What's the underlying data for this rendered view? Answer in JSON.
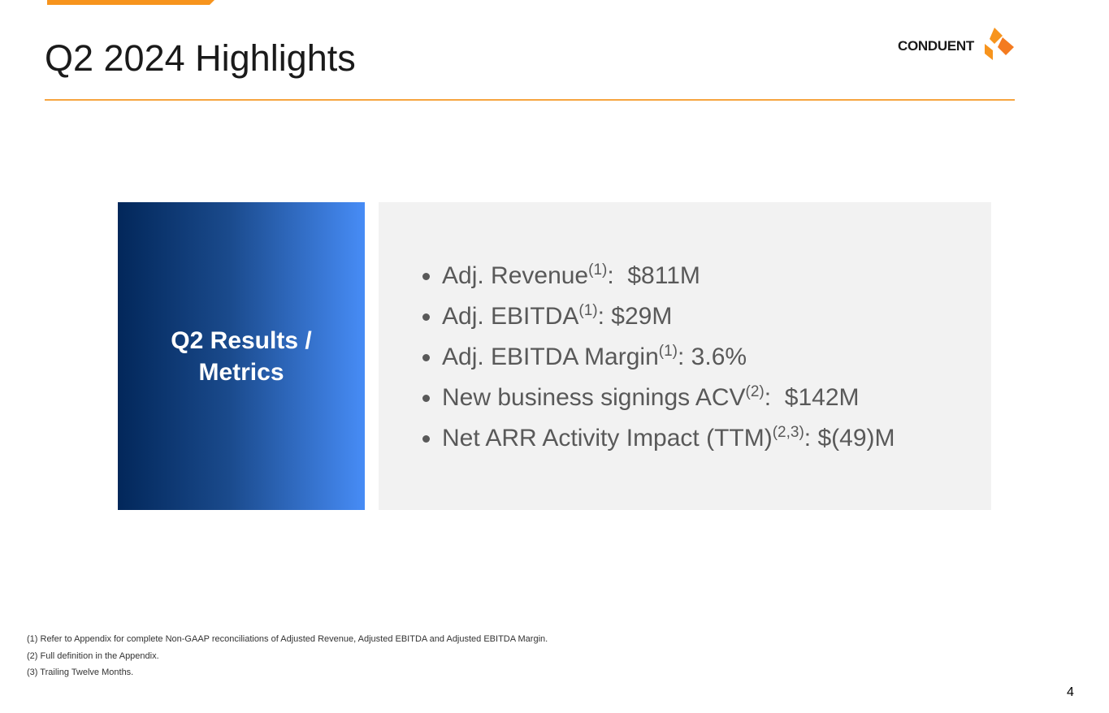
{
  "header": {
    "title": "Q2 2024 Highlights",
    "logo": "CONDUENT"
  },
  "panel": {
    "label": "Q2 Results / Metrics"
  },
  "bullets": [
    {
      "text": "Adj. Revenue",
      "sup": "(1)",
      "rest": ":  $811M"
    },
    {
      "text": "Adj. EBITDA",
      "sup": "(1)",
      "rest": ": $29M"
    },
    {
      "text": "Adj. EBITDA Margin",
      "sup": "(1)",
      "rest": ": 3.6%"
    },
    {
      "text": "New business signings ACV",
      "sup": "(2)",
      "rest": ":  $142M"
    },
    {
      "text": "Net ARR Activity Impact (TTM)",
      "sup": "(2,3)",
      "rest": ": $(49)M"
    }
  ],
  "footnotes": [
    "(1) Refer to Appendix for complete Non-GAAP reconciliations of Adjusted Revenue, Adjusted EBITDA and  Adjusted EBITDA Margin.",
    "(2) Full definition in the Appendix.",
    "(3) Trailing Twelve Months."
  ],
  "page_number": "4"
}
